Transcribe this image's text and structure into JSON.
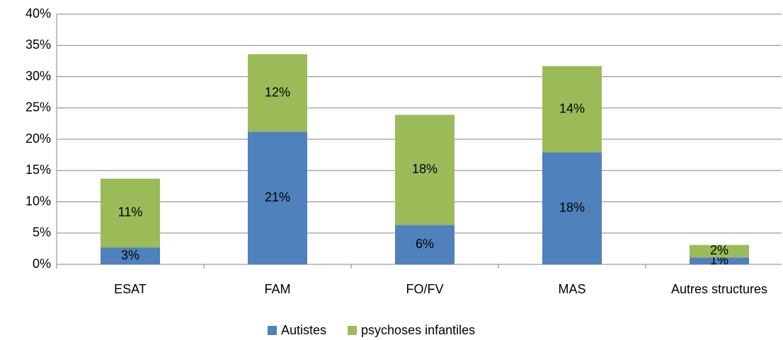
{
  "chart_data": {
    "type": "stacked_bar",
    "categories": [
      "ESAT",
      "FAM",
      "FO/FV",
      "MAS",
      "Autres structures"
    ],
    "series": [
      {
        "name": "Autistes",
        "color": "#4f81bd",
        "values": [
          2.7,
          21.2,
          6.3,
          17.9,
          1.1
        ],
        "value_labels": [
          "3%",
          "21%",
          "6%",
          "18%",
          "1%"
        ]
      },
      {
        "name": "psychoses infantiles",
        "color": "#9bbb59",
        "values": [
          11.0,
          12.4,
          17.6,
          13.8,
          2.0
        ],
        "value_labels": [
          "11%",
          "12%",
          "18%",
          "14%",
          "2%"
        ]
      }
    ],
    "ylim": [
      0,
      40
    ],
    "yticks": [
      {
        "value": 0,
        "label": "0%"
      },
      {
        "value": 5,
        "label": "5%"
      },
      {
        "value": 10,
        "label": "10%"
      },
      {
        "value": 15,
        "label": "15%"
      },
      {
        "value": 20,
        "label": "20%"
      },
      {
        "value": 25,
        "label": "25%"
      },
      {
        "value": 30,
        "label": "30%"
      },
      {
        "value": 35,
        "label": "35%"
      },
      {
        "value": 40,
        "label": "40%"
      }
    ],
    "grid": true,
    "legend": "bottom"
  }
}
